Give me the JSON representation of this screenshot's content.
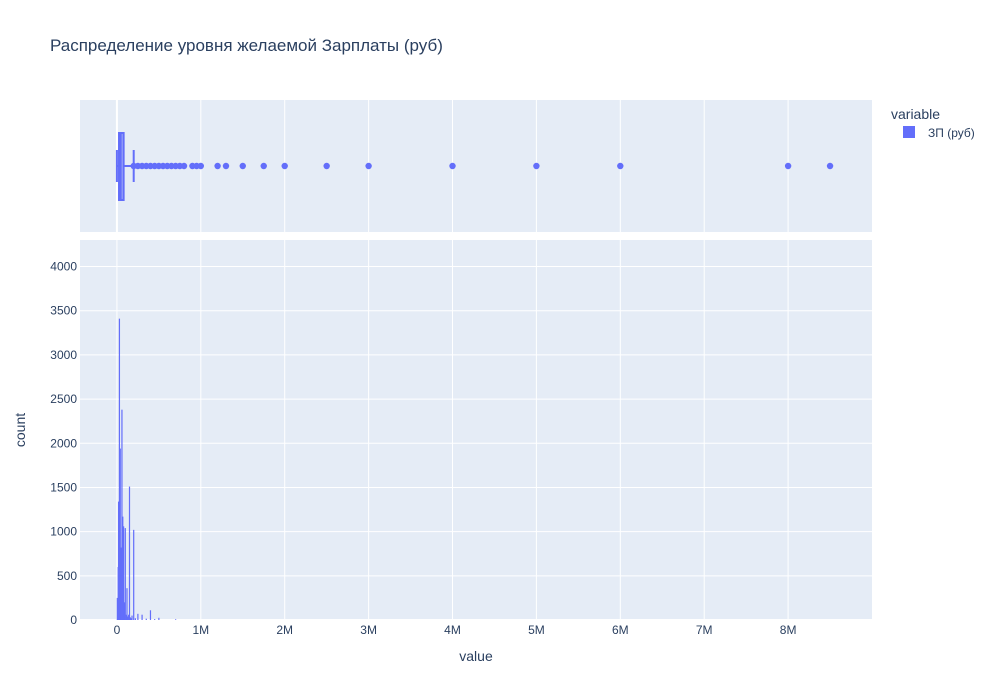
{
  "chart_data": {
    "title": "Распределение уровня желаемой Зарплаты (руб)",
    "legend": {
      "title": "variable",
      "position": "top-right",
      "entries": [
        "ЗП (руб)"
      ]
    },
    "colors": {
      "series": "#636efa",
      "plot_bg": "#e5ecf6",
      "grid": "#ffffff",
      "text": "#2a3f5f"
    },
    "grid": true,
    "xlabel": "value",
    "ylabel": "count",
    "x_tick_values": [
      0,
      1000000,
      2000000,
      3000000,
      4000000,
      5000000,
      6000000,
      7000000,
      8000000
    ],
    "x_tick_labels": [
      "0",
      "1M",
      "2M",
      "3M",
      "4M",
      "5M",
      "6M",
      "7M",
      "8M"
    ],
    "xlim": [
      -440000,
      9000000
    ],
    "y_tick_values": [
      0,
      500,
      1000,
      1500,
      2000,
      2500,
      3000,
      3500,
      4000
    ],
    "y_tick_labels": [
      "0",
      "500",
      "1000",
      "1500",
      "2000",
      "2500",
      "3000",
      "3500",
      "4000"
    ],
    "ylim": [
      0,
      4300
    ],
    "box": {
      "type": "box",
      "series": "ЗП (руб)",
      "min": 0,
      "q1": 25000,
      "median": 45000,
      "q3": 80000,
      "upper_fence": 200000,
      "outliers": [
        200000,
        250000,
        300000,
        350000,
        400000,
        450000,
        500000,
        550000,
        600000,
        650000,
        700000,
        750000,
        800000,
        900000,
        950000,
        1000000,
        1200000,
        1300000,
        1500000,
        1750000,
        2000000,
        2500000,
        3000000,
        4000000,
        5000000,
        6000000,
        8000000,
        8500000
      ]
    },
    "histogram": {
      "type": "bar",
      "series": "ЗП (руб)",
      "bins": [
        {
          "x": 5000,
          "count": 250
        },
        {
          "x": 10000,
          "count": 230
        },
        {
          "x": 15000,
          "count": 600
        },
        {
          "x": 20000,
          "count": 1340
        },
        {
          "x": 25000,
          "count": 650
        },
        {
          "x": 30000,
          "count": 3410
        },
        {
          "x": 35000,
          "count": 720
        },
        {
          "x": 40000,
          "count": 1940
        },
        {
          "x": 45000,
          "count": 800
        },
        {
          "x": 50000,
          "count": 820
        },
        {
          "x": 55000,
          "count": 300
        },
        {
          "x": 60000,
          "count": 2380
        },
        {
          "x": 65000,
          "count": 250
        },
        {
          "x": 70000,
          "count": 1170
        },
        {
          "x": 75000,
          "count": 420
        },
        {
          "x": 80000,
          "count": 1060
        },
        {
          "x": 85000,
          "count": 150
        },
        {
          "x": 90000,
          "count": 200
        },
        {
          "x": 95000,
          "count": 80
        },
        {
          "x": 100000,
          "count": 1040
        },
        {
          "x": 110000,
          "count": 60
        },
        {
          "x": 120000,
          "count": 360
        },
        {
          "x": 130000,
          "count": 40
        },
        {
          "x": 140000,
          "count": 60
        },
        {
          "x": 150000,
          "count": 1510
        },
        {
          "x": 160000,
          "count": 30
        },
        {
          "x": 170000,
          "count": 20
        },
        {
          "x": 180000,
          "count": 50
        },
        {
          "x": 200000,
          "count": 1020
        },
        {
          "x": 220000,
          "count": 20
        },
        {
          "x": 250000,
          "count": 70
        },
        {
          "x": 300000,
          "count": 60
        },
        {
          "x": 350000,
          "count": 15
        },
        {
          "x": 400000,
          "count": 110
        },
        {
          "x": 450000,
          "count": 10
        },
        {
          "x": 500000,
          "count": 25
        },
        {
          "x": 700000,
          "count": 8
        }
      ]
    }
  }
}
